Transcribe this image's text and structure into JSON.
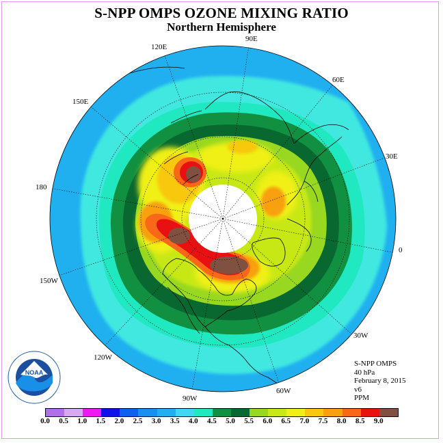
{
  "title": "S-NPP OMPS OZONE MIXING RATIO",
  "subtitle": "Northern Hemisphere",
  "info": {
    "instrument": "S-NPP OMPS",
    "level": "40 hPa",
    "date": "February 8, 2015",
    "version": "v6",
    "units": "PPM"
  },
  "logo": {
    "text": "NOAA",
    "ring_text": "NATIONAL OCEANIC AND ATMOSPHERIC ADMINISTRATION U.S. DEPARTMENT OF COMMERCE"
  },
  "longitude_labels": [
    {
      "text": "90E"
    },
    {
      "text": "60E"
    },
    {
      "text": "30E"
    },
    {
      "text": "0"
    },
    {
      "text": "30W"
    },
    {
      "text": "60W"
    },
    {
      "text": "90W"
    },
    {
      "text": "120W"
    },
    {
      "text": "150W"
    },
    {
      "text": "180"
    },
    {
      "text": "150E"
    },
    {
      "text": "120E"
    }
  ],
  "colorbar": {
    "ticks": [
      "0.0",
      "0.5",
      "1.0",
      "1.5",
      "2.0",
      "2.5",
      "3.0",
      "3.5",
      "4.0",
      "4.5",
      "5.0",
      "5.5",
      "6.0",
      "6.5",
      "7.0",
      "7.5",
      "8.0",
      "8.5",
      "9.0"
    ],
    "colors": [
      "#b070e8",
      "#d8a8f0",
      "#f018f0",
      "#1010e8",
      "#1060f0",
      "#1890f0",
      "#20b0f0",
      "#40d8f0",
      "#20e8c0",
      "#109040",
      "#086830",
      "#98d820",
      "#c8e818",
      "#f0f018",
      "#f8c810",
      "#f8a010",
      "#f86818",
      "#e81010",
      "#805040"
    ]
  }
}
